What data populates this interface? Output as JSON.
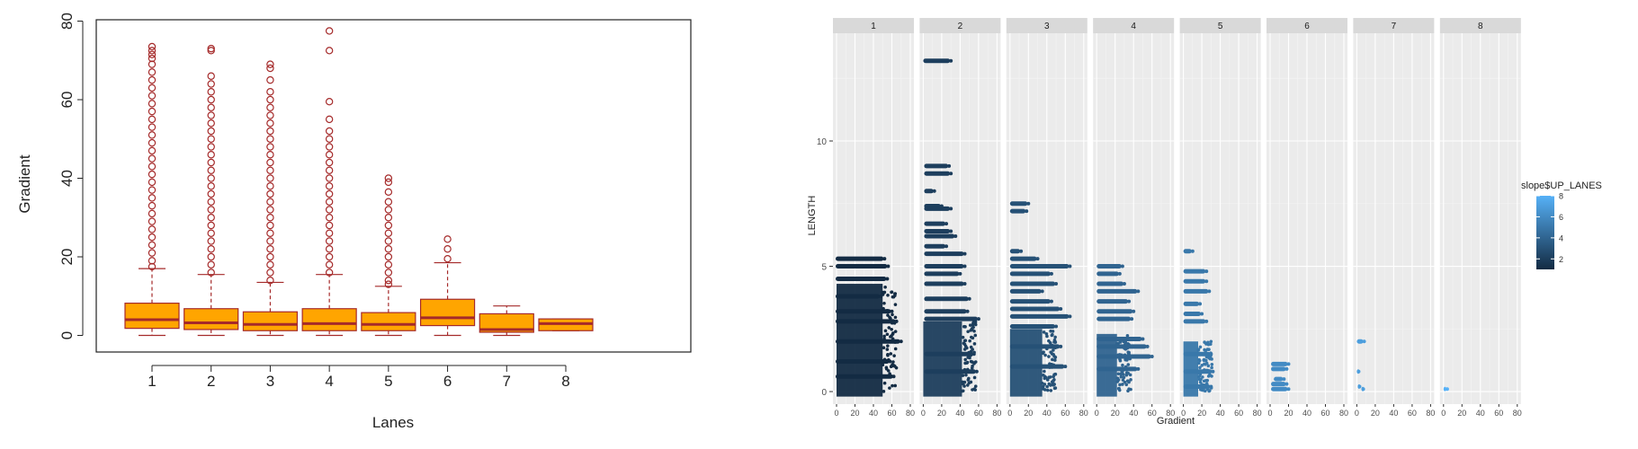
{
  "chart_data": [
    {
      "type": "box",
      "title": "",
      "xlabel": "Lanes",
      "ylabel": "Gradient",
      "ylim": [
        0,
        80
      ],
      "y_ticks": [
        "0",
        "20",
        "40",
        "60",
        "80"
      ],
      "categories": [
        "1",
        "2",
        "3",
        "4",
        "5",
        "6",
        "7",
        "8"
      ],
      "colors": {
        "box_fill": "#ffa500",
        "border": "#a52a2a"
      },
      "boxes": [
        {
          "lane": "1",
          "lower_whisker": 0,
          "q1": 1.8,
          "median": 4.0,
          "q3": 8.2,
          "upper_whisker": 17.0,
          "outliers": [
            17.5,
            19,
            21,
            23,
            25,
            27,
            29,
            31,
            33,
            35,
            37,
            39,
            41,
            43,
            45,
            47,
            49,
            51,
            53,
            55,
            57,
            59,
            61,
            63,
            65,
            67,
            69,
            70.5,
            71.5,
            72.5,
            73.5
          ]
        },
        {
          "lane": "2",
          "lower_whisker": 0,
          "q1": 1.5,
          "median": 3.2,
          "q3": 6.8,
          "upper_whisker": 15.5,
          "outliers": [
            16,
            18,
            20,
            22,
            24,
            26,
            28,
            30,
            32,
            34,
            36,
            38,
            40,
            42,
            44,
            46,
            48,
            50,
            52,
            54,
            56,
            58,
            60,
            62,
            64,
            66,
            72.5,
            73
          ]
        },
        {
          "lane": "3",
          "lower_whisker": 0,
          "q1": 1.2,
          "median": 2.8,
          "q3": 6.0,
          "upper_whisker": 13.5,
          "outliers": [
            14,
            16,
            18,
            20,
            22,
            24,
            26,
            28,
            30,
            32,
            34,
            36,
            38,
            40,
            42,
            44,
            46,
            48,
            50,
            52,
            54,
            56,
            58,
            60,
            62,
            65,
            68,
            69
          ]
        },
        {
          "lane": "4",
          "lower_whisker": 0,
          "q1": 1.2,
          "median": 3.0,
          "q3": 6.8,
          "upper_whisker": 15.5,
          "outliers": [
            16,
            18,
            20,
            22,
            24,
            26,
            28,
            30,
            32,
            34,
            36,
            38,
            40,
            42,
            44,
            46,
            48,
            50,
            52,
            55,
            59.5,
            72.5,
            77.5
          ]
        },
        {
          "lane": "5",
          "lower_whisker": 0,
          "q1": 1.2,
          "median": 2.8,
          "q3": 5.8,
          "upper_whisker": 12.5,
          "outliers": [
            13,
            14,
            16,
            18,
            20,
            22,
            24,
            26,
            28,
            30,
            32,
            34,
            36.5,
            39,
            40
          ]
        },
        {
          "lane": "6",
          "lower_whisker": 0,
          "q1": 2.5,
          "median": 4.5,
          "q3": 9.2,
          "upper_whisker": 18.5,
          "outliers": [
            19.5,
            22,
            24.5
          ]
        },
        {
          "lane": "7",
          "lower_whisker": 0,
          "q1": 0.8,
          "median": 1.5,
          "q3": 5.5,
          "upper_whisker": 7.5,
          "outliers": []
        },
        {
          "lane": "8",
          "lower_whisker": 1.2,
          "q1": 1.2,
          "median": 3.0,
          "q3": 4.2,
          "upper_whisker": 4.2,
          "outliers": []
        }
      ]
    },
    {
      "type": "scatter",
      "title": "",
      "xlabel": "Gradient",
      "ylabel": "LENGTH",
      "xlim": [
        0,
        80
      ],
      "ylim": [
        -0.5,
        14.3
      ],
      "x_ticks": [
        "0",
        "20",
        "40",
        "60",
        "80"
      ],
      "y_ticks": [
        "0",
        "5",
        "10"
      ],
      "facets": [
        "1",
        "2",
        "3",
        "4",
        "5",
        "6",
        "7",
        "8"
      ],
      "legend": {
        "title": "slope$UP_LANES",
        "labels": [
          "8",
          "6",
          "4",
          "2"
        ],
        "low_color": "#132b43",
        "high_color": "#56b1f7",
        "range": [
          1,
          8
        ]
      },
      "panels": [
        {
          "facet": "1",
          "lanes": 1,
          "dense_gradient_max": 50,
          "dense_length_max": 4.3,
          "bands": [
            [
              0,
              56,
              5.0
            ],
            [
              0,
              55,
              4.5
            ],
            [
              0,
              52,
              5.3
            ],
            [
              0,
              48,
              3.8
            ],
            [
              0,
              60,
              3.2
            ],
            [
              0,
              65,
              2.8
            ],
            [
              0,
              70,
              2.0
            ],
            [
              0,
              58,
              1.2
            ],
            [
              0,
              62,
              0.6
            ]
          ]
        },
        {
          "facet": "2",
          "lanes": 2,
          "dense_gradient_max": 42,
          "dense_length_max": 2.8,
          "bands": [
            [
              1,
              30,
              13.2
            ],
            [
              2,
              28,
              9.0
            ],
            [
              2,
              30,
              8.7
            ],
            [
              2,
              12,
              8.0
            ],
            [
              2,
              20,
              7.4
            ],
            [
              2,
              30,
              7.3
            ],
            [
              2,
              25,
              6.7
            ],
            [
              2,
              30,
              6.4
            ],
            [
              2,
              35,
              6.2
            ],
            [
              2,
              25,
              5.8
            ],
            [
              2,
              45,
              5.5
            ],
            [
              2,
              45,
              5.0
            ],
            [
              2,
              40,
              4.7
            ],
            [
              2,
              45,
              4.3
            ],
            [
              2,
              50,
              3.7
            ],
            [
              2,
              48,
              3.2
            ],
            [
              2,
              60,
              2.9
            ],
            [
              2,
              55,
              1.5
            ],
            [
              2,
              58,
              0.8
            ]
          ]
        },
        {
          "facet": "3",
          "lanes": 3,
          "dense_gradient_max": 35,
          "dense_length_max": 2.5,
          "bands": [
            [
              1,
              20,
              7.5
            ],
            [
              1,
              18,
              7.2
            ],
            [
              1,
              12,
              5.6
            ],
            [
              1,
              30,
              5.3
            ],
            [
              1,
              65,
              5.0
            ],
            [
              1,
              45,
              4.7
            ],
            [
              1,
              50,
              4.3
            ],
            [
              1,
              35,
              4.0
            ],
            [
              1,
              45,
              3.6
            ],
            [
              1,
              55,
              3.3
            ],
            [
              1,
              65,
              3.0
            ],
            [
              1,
              50,
              2.6
            ],
            [
              1,
              55,
              1.8
            ],
            [
              1,
              60,
              1.0
            ]
          ]
        },
        {
          "facet": "4",
          "lanes": 4,
          "dense_gradient_max": 22,
          "dense_length_max": 2.3,
          "bands": [
            [
              1,
              28,
              5.0
            ],
            [
              1,
              25,
              4.7
            ],
            [
              1,
              30,
              4.3
            ],
            [
              1,
              45,
              4.0
            ],
            [
              1,
              35,
              3.6
            ],
            [
              1,
              40,
              3.2
            ],
            [
              1,
              38,
              2.9
            ],
            [
              1,
              50,
              2.1
            ],
            [
              1,
              55,
              1.8
            ],
            [
              1,
              60,
              1.4
            ],
            [
              1,
              45,
              0.9
            ]
          ]
        },
        {
          "facet": "5",
          "lanes": 5,
          "dense_gradient_max": 16,
          "dense_length_max": 2.0,
          "bands": [
            [
              1,
              10,
              5.6
            ],
            [
              1,
              25,
              4.8
            ],
            [
              1,
              25,
              4.4
            ],
            [
              1,
              28,
              4.0
            ],
            [
              1,
              18,
              3.5
            ],
            [
              1,
              20,
              3.1
            ],
            [
              1,
              25,
              2.8
            ],
            [
              1,
              30,
              1.5
            ],
            [
              1,
              32,
              0.8
            ],
            [
              1,
              30,
              0.2
            ]
          ]
        },
        {
          "facet": "6",
          "lanes": 6,
          "dense_gradient_max": 0,
          "dense_length_max": 0,
          "bands": [
            [
              2,
              20,
              1.1
            ],
            [
              2,
              18,
              0.9
            ],
            [
              2,
              18,
              0.3
            ],
            [
              2,
              20,
              0.1
            ],
            [
              5,
              15,
              0.5
            ]
          ]
        },
        {
          "facet": "7",
          "lanes": 7,
          "dense_gradient_max": 0,
          "dense_length_max": 0,
          "bands": [
            [
              1,
              8,
              2.0
            ],
            [
              1,
              2,
              0.8
            ],
            [
              2,
              3,
              0.2
            ],
            [
              6,
              7,
              0.1
            ]
          ]
        },
        {
          "facet": "8",
          "lanes": 8,
          "dense_gradient_max": 0,
          "dense_length_max": 0,
          "bands": [
            [
              1,
              4,
              0.1
            ]
          ]
        }
      ]
    }
  ]
}
